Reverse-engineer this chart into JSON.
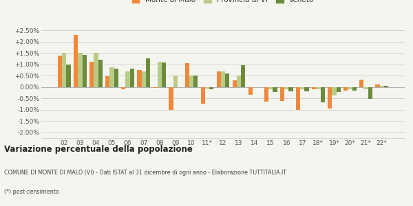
{
  "years": [
    "02",
    "03",
    "04",
    "05",
    "06",
    "07",
    "08",
    "09",
    "10",
    "11*",
    "12",
    "13",
    "14",
    "15",
    "16",
    "17",
    "18*",
    "19*",
    "20*",
    "21*",
    "22*"
  ],
  "monte_di_malo": [
    1.4,
    2.3,
    1.1,
    0.48,
    -0.1,
    0.75,
    -0.05,
    -1.0,
    1.05,
    -0.75,
    0.7,
    0.3,
    -0.35,
    -0.65,
    -0.6,
    -1.0,
    -0.1,
    -0.95,
    -0.15,
    0.32,
    0.1
  ],
  "provincia_vi": [
    1.5,
    1.5,
    1.5,
    0.88,
    0.68,
    0.68,
    1.1,
    0.52,
    0.5,
    -0.08,
    0.7,
    0.5,
    0.0,
    -0.1,
    -0.1,
    -0.1,
    -0.1,
    -0.38,
    -0.1,
    -0.1,
    0.05
  ],
  "veneto": [
    1.0,
    1.42,
    1.2,
    0.82,
    0.82,
    1.25,
    1.08,
    0.0,
    0.5,
    -0.1,
    0.6,
    0.95,
    0.0,
    -0.22,
    -0.18,
    -0.2,
    -0.68,
    -0.22,
    -0.15,
    -0.52,
    0.05
  ],
  "color_monte": "#f0883c",
  "color_provincia": "#b8cc88",
  "color_veneto": "#6b8c3c",
  "background_color": "#f5f5f0",
  "grid_color": "#cccccc",
  "title": "Variazione percentuale della popolazione",
  "subtitle": "COMUNE DI MONTE DI MALO (VI) - Dati ISTAT al 31 dicembre di ogni anno - Elaborazione TUTTITALIA.IT",
  "footnote": "(*) post-censimento",
  "ylim": [
    -2.25,
    2.75
  ],
  "yticks": [
    -2.0,
    -1.5,
    -1.0,
    -0.5,
    0.0,
    0.5,
    1.0,
    1.5,
    2.0,
    2.5
  ]
}
